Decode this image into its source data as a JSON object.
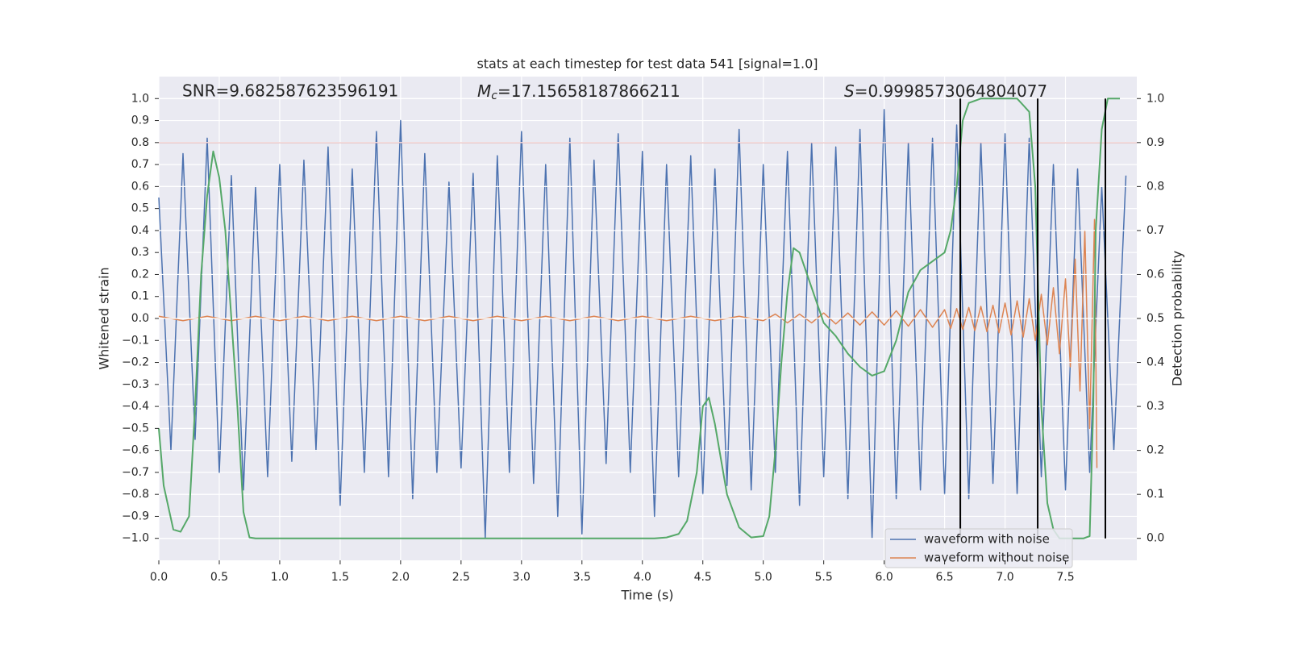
{
  "chart_data": {
    "type": "line",
    "title": "stats at each timestep for test data 541 [signal=1.0]",
    "xlabel": "Time (s)",
    "ylabel": "Whitened strain",
    "y2label": "Detection probability",
    "annotations": [
      {
        "text": "SNR=9.682587623596191"
      },
      {
        "symbol": "M",
        "subscript": "c",
        "text": "=17.15658187866211"
      },
      {
        "symbol": "S",
        "text": "=0.9998573064804077"
      }
    ],
    "xlim": [
      0,
      8.09
    ],
    "ylim": [
      -1.1,
      1.1
    ],
    "y2lim": [
      -0.05,
      1.05
    ],
    "grid": true,
    "legend": "lower right",
    "xticks": [
      {
        "value": 0,
        "label": "0.0"
      },
      {
        "value": 0.5,
        "label": "0.5"
      },
      {
        "value": 1,
        "label": "1.0"
      },
      {
        "value": 1.5,
        "label": "1.5"
      },
      {
        "value": 2,
        "label": "2.0"
      },
      {
        "value": 2.5,
        "label": "2.5"
      },
      {
        "value": 3,
        "label": "3.0"
      },
      {
        "value": 3.5,
        "label": "3.5"
      },
      {
        "value": 4,
        "label": "4.0"
      },
      {
        "value": 4.5,
        "label": "4.5"
      },
      {
        "value": 5,
        "label": "5.0"
      },
      {
        "value": 5.5,
        "label": "5.5"
      },
      {
        "value": 6,
        "label": "6.0"
      },
      {
        "value": 6.5,
        "label": "6.5"
      },
      {
        "value": 7,
        "label": "7.0"
      },
      {
        "value": 7.5,
        "label": "7.5"
      }
    ],
    "yticks": [
      {
        "value": -1,
        "label": "−1.0"
      },
      {
        "value": -0.9,
        "label": "−0.9"
      },
      {
        "value": -0.8,
        "label": "−0.8"
      },
      {
        "value": -0.7,
        "label": "−0.7"
      },
      {
        "value": -0.6,
        "label": "−0.6"
      },
      {
        "value": -0.5,
        "label": "−0.5"
      },
      {
        "value": -0.4,
        "label": "−0.4"
      },
      {
        "value": -0.3,
        "label": "−0.3"
      },
      {
        "value": -0.2,
        "label": "−0.2"
      },
      {
        "value": -0.1,
        "label": "−0.1"
      },
      {
        "value": 0,
        "label": "0.0"
      },
      {
        "value": 0.1,
        "label": "0.1"
      },
      {
        "value": 0.2,
        "label": "0.2"
      },
      {
        "value": 0.3,
        "label": "0.3"
      },
      {
        "value": 0.4,
        "label": "0.4"
      },
      {
        "value": 0.5,
        "label": "0.5"
      },
      {
        "value": 0.6,
        "label": "0.6"
      },
      {
        "value": 0.7,
        "label": "0.7"
      },
      {
        "value": 0.8,
        "label": "0.8"
      },
      {
        "value": 0.9,
        "label": "0.9"
      },
      {
        "value": 1,
        "label": "1.0"
      }
    ],
    "y2ticks": [
      {
        "value": 0,
        "label": "0.0"
      },
      {
        "value": 0.1,
        "label": "0.1"
      },
      {
        "value": 0.2,
        "label": "0.2"
      },
      {
        "value": 0.3,
        "label": "0.3"
      },
      {
        "value": 0.4,
        "label": "0.4"
      },
      {
        "value": 0.5,
        "label": "0.5"
      },
      {
        "value": 0.6,
        "label": "0.6"
      },
      {
        "value": 0.7,
        "label": "0.7"
      },
      {
        "value": 0.8,
        "label": "0.8"
      },
      {
        "value": 0.9,
        "label": "0.9"
      },
      {
        "value": 1,
        "label": "1.0"
      }
    ],
    "threshold": {
      "value": 0.8,
      "color": "#c44e52"
    },
    "vlines": {
      "values": [
        6.63,
        7.27,
        7.83
      ],
      "color": "#000000",
      "ylim": [
        -1,
        1
      ]
    },
    "series": [
      {
        "name": "waveform with noise",
        "color": "#4c72b0",
        "x": [
          0,
          0.1,
          0.2,
          0.3,
          0.4,
          0.5,
          0.6,
          0.7,
          0.8,
          0.9,
          1,
          1.1,
          1.2,
          1.3,
          1.4,
          1.5,
          1.6,
          1.7,
          1.8,
          1.9,
          2,
          2.1,
          2.2,
          2.3,
          2.4,
          2.5,
          2.6,
          2.7,
          2.8,
          2.9,
          3,
          3.1,
          3.2,
          3.3,
          3.4,
          3.5,
          3.6,
          3.7,
          3.8,
          3.9,
          4,
          4.1,
          4.2,
          4.3,
          4.4,
          4.5,
          4.6,
          4.7,
          4.8,
          4.9,
          5,
          5.1,
          5.2,
          5.3,
          5.4,
          5.5,
          5.6,
          5.7,
          5.8,
          5.9,
          6,
          6.1,
          6.2,
          6.3,
          6.4,
          6.5,
          6.6,
          6.7,
          6.8,
          6.9,
          7,
          7.1,
          7.2,
          7.3,
          7.4,
          7.5,
          7.6,
          7.7,
          7.8,
          7.9,
          8
        ],
        "values": [
          0.55,
          -0.6,
          0.75,
          -0.55,
          0.82,
          -0.7,
          0.65,
          -0.78,
          0.6,
          -0.72,
          0.7,
          -0.65,
          0.72,
          -0.6,
          0.78,
          -0.85,
          0.68,
          -0.7,
          0.85,
          -0.72,
          0.9,
          -0.82,
          0.75,
          -0.7,
          0.62,
          -0.68,
          0.66,
          -1.0,
          0.74,
          -0.7,
          0.85,
          -0.75,
          0.7,
          -0.9,
          0.82,
          -0.98,
          0.72,
          -0.66,
          0.84,
          -0.7,
          0.76,
          -0.9,
          0.7,
          -0.72,
          0.74,
          -0.8,
          0.68,
          -0.76,
          0.86,
          -0.78,
          0.7,
          -0.7,
          0.76,
          -0.85,
          0.8,
          -0.72,
          0.78,
          -0.82,
          0.86,
          -1.0,
          0.95,
          -0.82,
          0.8,
          -0.78,
          0.82,
          -0.8,
          0.88,
          -0.82,
          0.8,
          -0.75,
          0.84,
          -0.8,
          0.82,
          -0.72,
          0.7,
          -0.78,
          0.68,
          -0.7,
          0.6,
          -0.6,
          0.65
        ]
      },
      {
        "name": "waveform without noise",
        "color": "#dd8452",
        "x": [
          0,
          0.2,
          0.4,
          0.6,
          0.8,
          1,
          1.2,
          1.4,
          1.6,
          1.8,
          2,
          2.2,
          2.4,
          2.6,
          2.8,
          3,
          3.2,
          3.4,
          3.6,
          3.8,
          4,
          4.2,
          4.4,
          4.6,
          4.8,
          5,
          5.1,
          5.2,
          5.3,
          5.4,
          5.5,
          5.6,
          5.7,
          5.8,
          5.9,
          6,
          6.1,
          6.2,
          6.3,
          6.4,
          6.5,
          6.55,
          6.6,
          6.65,
          6.7,
          6.75,
          6.8,
          6.85,
          6.9,
          6.95,
          7,
          7.05,
          7.1,
          7.15,
          7.2,
          7.25,
          7.3,
          7.35,
          7.4,
          7.45,
          7.5,
          7.54,
          7.58,
          7.62,
          7.66,
          7.7,
          7.74,
          7.76
        ],
        "values": [
          0.01,
          -0.01,
          0.01,
          -0.01,
          0.01,
          -0.01,
          0.01,
          -0.01,
          0.01,
          -0.01,
          0.01,
          -0.01,
          0.01,
          -0.01,
          0.01,
          -0.01,
          0.01,
          -0.01,
          0.01,
          -0.01,
          0.01,
          -0.01,
          0.01,
          -0.01,
          0.01,
          -0.01,
          0.02,
          -0.02,
          0.02,
          -0.02,
          0.025,
          -0.025,
          0.025,
          -0.03,
          0.03,
          -0.03,
          0.035,
          -0.035,
          0.04,
          -0.04,
          0.04,
          -0.045,
          0.045,
          -0.05,
          0.05,
          -0.055,
          0.055,
          -0.06,
          0.06,
          -0.065,
          0.07,
          -0.075,
          0.08,
          -0.085,
          0.09,
          -0.1,
          0.11,
          -0.12,
          0.14,
          -0.16,
          0.18,
          -0.22,
          0.27,
          -0.33,
          0.4,
          -0.5,
          0.45,
          -0.68
        ]
      },
      {
        "color": "#55a868",
        "axis": "y2",
        "x": [
          0,
          0.04,
          0.08,
          0.12,
          0.18,
          0.25,
          0.3,
          0.35,
          0.4,
          0.45,
          0.5,
          0.55,
          0.6,
          0.65,
          0.7,
          0.75,
          0.8,
          4.1,
          4.2,
          4.3,
          4.37,
          4.45,
          4.5,
          4.55,
          4.6,
          4.7,
          4.8,
          4.9,
          5,
          5.05,
          5.1,
          5.15,
          5.2,
          5.25,
          5.3,
          5.4,
          5.5,
          5.6,
          5.7,
          5.8,
          5.9,
          6,
          6.1,
          6.2,
          6.3,
          6.4,
          6.5,
          6.55,
          6.6,
          6.65,
          6.7,
          6.8,
          7.1,
          7.2,
          7.25,
          7.3,
          7.35,
          7.4,
          7.45,
          7.65,
          7.7,
          7.73,
          7.75,
          7.8,
          7.85,
          7.95
        ],
        "values": [
          0.25,
          0.12,
          0.07,
          0.02,
          0.015,
          0.05,
          0.3,
          0.6,
          0.78,
          0.88,
          0.82,
          0.7,
          0.5,
          0.3,
          0.06,
          0.002,
          0,
          0,
          0.002,
          0.01,
          0.04,
          0.15,
          0.3,
          0.32,
          0.26,
          0.1,
          0.025,
          0.002,
          0.005,
          0.05,
          0.2,
          0.4,
          0.56,
          0.66,
          0.65,
          0.57,
          0.49,
          0.46,
          0.42,
          0.39,
          0.37,
          0.38,
          0.45,
          0.56,
          0.61,
          0.63,
          0.65,
          0.7,
          0.8,
          0.95,
          0.99,
          1,
          1,
          0.97,
          0.8,
          0.3,
          0.08,
          0.02,
          0,
          0,
          0.005,
          0.3,
          0.7,
          0.93,
          1,
          1
        ]
      }
    ]
  }
}
